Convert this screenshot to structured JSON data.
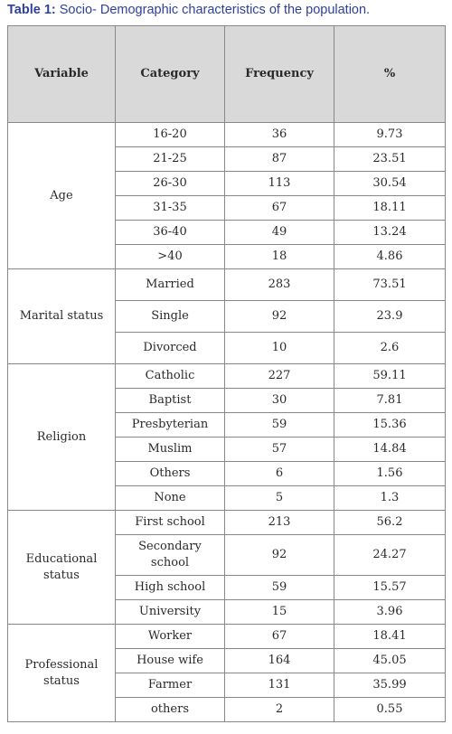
{
  "caption": {
    "label": "Table 1:",
    "text": " Socio- Demographic characteristics of the population."
  },
  "headers": {
    "variable": "Variable",
    "category": "Category",
    "frequency": "Frequency",
    "percent": "%"
  },
  "groups": [
    {
      "variable": "Age",
      "rows": [
        {
          "category": "16-20",
          "frequency": "36",
          "percent": "9.73"
        },
        {
          "category": "21-25",
          "frequency": "87",
          "percent": "23.51"
        },
        {
          "category": "26-30",
          "frequency": "113",
          "percent": "30.54"
        },
        {
          "category": "31-35",
          "frequency": "67",
          "percent": "18.11"
        },
        {
          "category": "36-40",
          "frequency": "49",
          "percent": "13.24"
        },
        {
          "category": ">40",
          "frequency": "18",
          "percent": "4.86"
        }
      ]
    },
    {
      "variable": "Marital status",
      "rows": [
        {
          "category": "Married",
          "frequency": "283",
          "percent": "73.51"
        },
        {
          "category": "Single",
          "frequency": "92",
          "percent": "23.9"
        },
        {
          "category": "Divorced",
          "frequency": "10",
          "percent": "2.6"
        }
      ]
    },
    {
      "variable": "Religion",
      "rows": [
        {
          "category": "Catholic",
          "frequency": "227",
          "percent": "59.11"
        },
        {
          "category": "Baptist",
          "frequency": "30",
          "percent": "7.81"
        },
        {
          "category": "Presbyterian",
          "frequency": "59",
          "percent": "15.36"
        },
        {
          "category": "Muslim",
          "frequency": "57",
          "percent": "14.84"
        },
        {
          "category": "Others",
          "frequency": "6",
          "percent": "1.56"
        },
        {
          "category": "None",
          "frequency": "5",
          "percent": "1.3"
        }
      ]
    },
    {
      "variable": "Educational status",
      "rows": [
        {
          "category": "First school",
          "frequency": "213",
          "percent": "56.2"
        },
        {
          "category": "Secondary school",
          "frequency": "92",
          "percent": "24.27"
        },
        {
          "category": "High school",
          "frequency": "59",
          "percent": "15.57"
        },
        {
          "category": "University",
          "frequency": "15",
          "percent": "3.96"
        }
      ]
    },
    {
      "variable": "Professional status",
      "rows": [
        {
          "category": "Worker",
          "frequency": "67",
          "percent": "18.41"
        },
        {
          "category": "House wife",
          "frequency": "164",
          "percent": "45.05"
        },
        {
          "category": "Farmer",
          "frequency": "131",
          "percent": "35.99"
        },
        {
          "category": "others",
          "frequency": "2",
          "percent": "0.55"
        }
      ]
    }
  ]
}
